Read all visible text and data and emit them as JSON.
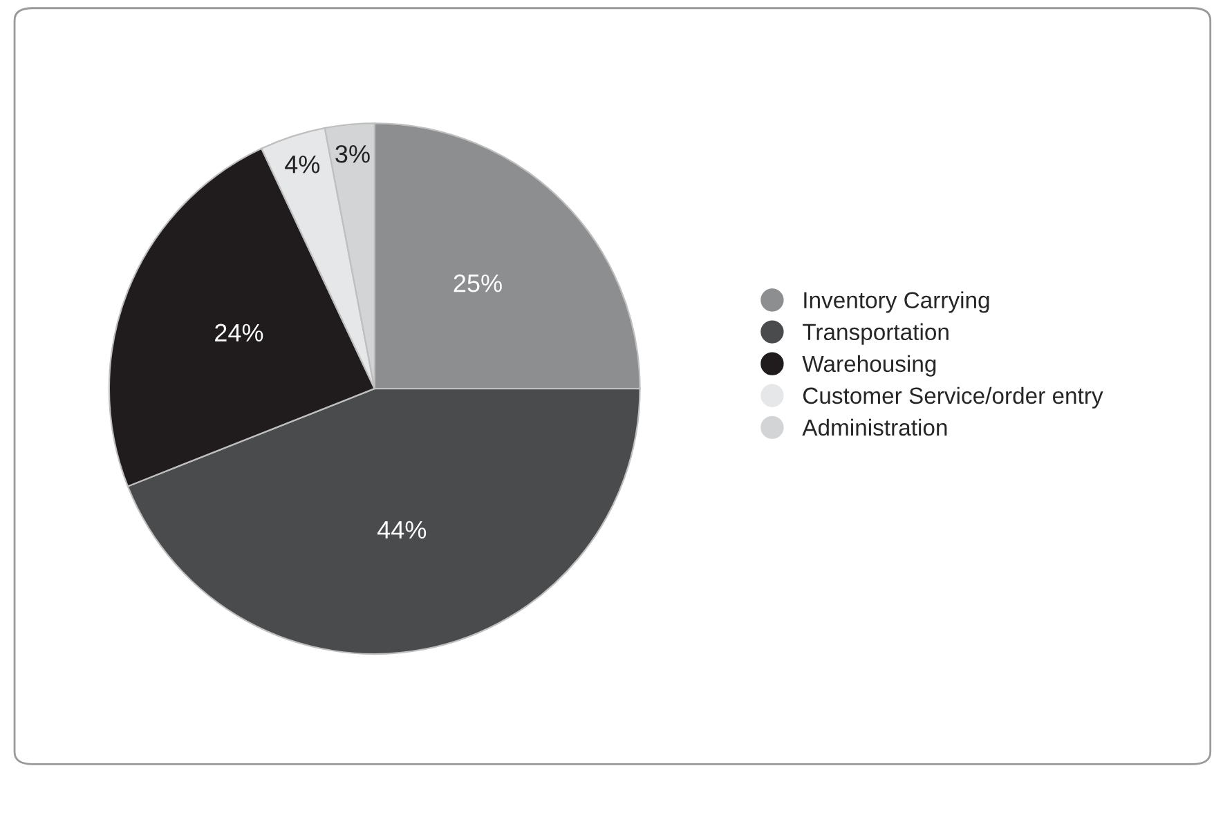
{
  "chart_data": {
    "type": "pie",
    "categories": [
      "Inventory Carrying",
      "Transportation",
      "Warehousing",
      "Customer Service/order entry",
      "Administration"
    ],
    "values": [
      25,
      44,
      24,
      4,
      3
    ],
    "colors": [
      "#8d8e90",
      "#4a4b4d",
      "#201c1d",
      "#e6e7e8",
      "#d3d4d6"
    ],
    "value_labels": [
      "25%",
      "44%",
      "24%",
      "4%",
      "3%"
    ],
    "legend": "right"
  }
}
